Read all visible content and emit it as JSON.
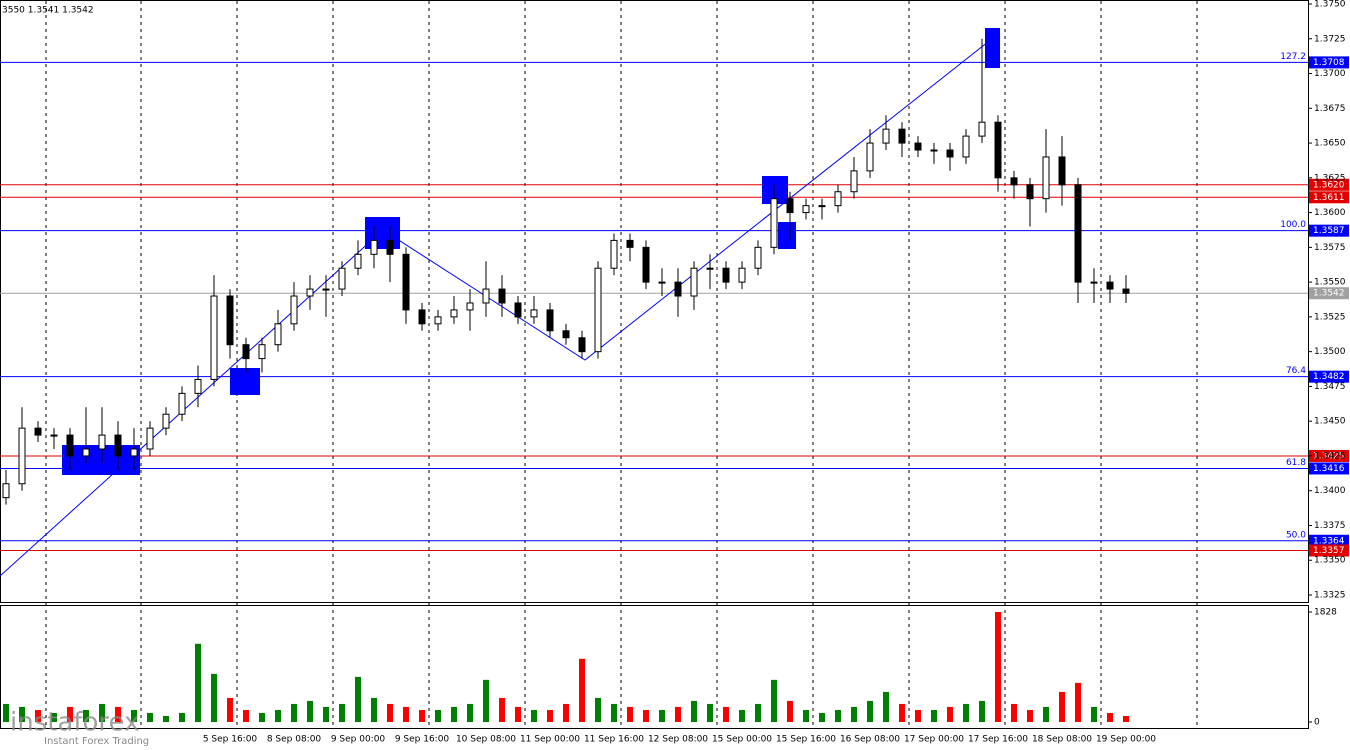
{
  "chart_data": {
    "type": "candlestick",
    "header": "3550 1.3541 1.3542",
    "watermark": "instaforex",
    "watermark_tagline": "Instant Forex Trading",
    "categories": [
      null,
      null,
      null,
      null,
      null,
      null,
      null,
      null,
      null,
      null,
      null,
      null,
      null,
      null,
      "5 Sep 16:00",
      null,
      null,
      null,
      "8 Sep 08:00",
      null,
      null,
      null,
      "9 Sep 00:00",
      null,
      null,
      null,
      "9 Sep 16:00",
      null,
      null,
      null,
      "10 Sep 08:00",
      null,
      null,
      null,
      "11 Sep 00:00",
      null,
      null,
      null,
      "11 Sep 16:00",
      null,
      null,
      null,
      "12 Sep 08:00",
      null,
      null,
      null,
      "15 Sep 00:00",
      null,
      null,
      null,
      "15 Sep 16:00",
      null,
      null,
      null,
      "16 Sep 08:00",
      null,
      null,
      null,
      "17 Sep 00:00",
      null,
      null,
      null,
      "17 Sep 16:00",
      null,
      null,
      null,
      "18 Sep 08:00",
      null,
      null,
      null,
      "19 Sep 00:00"
    ],
    "open": [
      1.3395,
      1.3405,
      1.3445,
      1.344,
      1.344,
      1.3425,
      1.343,
      1.344,
      1.3425,
      1.343,
      1.3445,
      1.3455,
      1.347,
      1.348,
      1.354,
      1.3505,
      1.3495,
      1.3505,
      1.352,
      1.354,
      1.3545,
      1.3545,
      1.356,
      1.357,
      1.358,
      1.357,
      1.353,
      1.352,
      1.3525,
      1.353,
      1.3535,
      1.3545,
      1.3535,
      1.3525,
      1.353,
      1.3515,
      1.351,
      1.35,
      1.356,
      1.358,
      1.3575,
      1.355,
      1.355,
      1.354,
      1.356,
      1.356,
      1.355,
      1.356,
      1.3575,
      1.361,
      1.36,
      1.3605,
      1.3605,
      1.3615,
      1.363,
      1.365,
      1.366,
      1.365,
      1.3645,
      1.3645,
      1.364,
      1.3655,
      1.3665,
      1.3625,
      1.362,
      1.361,
      1.364,
      1.362,
      1.355,
      1.355,
      1.3545
    ],
    "high": [
      1.3415,
      1.346,
      1.345,
      1.3445,
      1.3445,
      1.346,
      1.346,
      1.345,
      1.3445,
      1.345,
      1.346,
      1.3475,
      1.349,
      1.3555,
      1.3545,
      1.351,
      1.351,
      1.353,
      1.355,
      1.3555,
      1.3555,
      1.3565,
      1.358,
      1.359,
      1.359,
      1.3575,
      1.3535,
      1.353,
      1.354,
      1.3545,
      1.3565,
      1.3555,
      1.354,
      1.354,
      1.3535,
      1.352,
      1.3515,
      1.3565,
      1.3585,
      1.3585,
      1.358,
      1.356,
      1.356,
      1.3565,
      1.357,
      1.3565,
      1.3565,
      1.358,
      1.362,
      1.3615,
      1.361,
      1.361,
      1.362,
      1.364,
      1.366,
      1.367,
      1.3665,
      1.3655,
      1.365,
      1.365,
      1.366,
      1.3725,
      1.367,
      1.363,
      1.3625,
      1.366,
      1.3655,
      1.3625,
      1.356,
      1.3555,
      1.3555
    ],
    "low": [
      1.339,
      1.34,
      1.3435,
      1.343,
      1.3415,
      1.342,
      1.342,
      1.3415,
      1.3415,
      1.3425,
      1.344,
      1.345,
      1.346,
      1.3475,
      1.3495,
      1.3485,
      1.3485,
      1.35,
      1.3515,
      1.353,
      1.3525,
      1.354,
      1.3555,
      1.356,
      1.355,
      1.352,
      1.3515,
      1.3515,
      1.352,
      1.3515,
      1.3525,
      1.3525,
      1.352,
      1.352,
      1.351,
      1.3505,
      1.3495,
      1.3495,
      1.3555,
      1.3565,
      1.3545,
      1.354,
      1.3525,
      1.353,
      1.3545,
      1.3545,
      1.3545,
      1.3555,
      1.357,
      1.358,
      1.3595,
      1.3595,
      1.36,
      1.361,
      1.3625,
      1.3645,
      1.364,
      1.364,
      1.3635,
      1.363,
      1.3635,
      1.365,
      1.3615,
      1.361,
      1.359,
      1.36,
      1.3605,
      1.3535,
      1.3535,
      1.3535,
      1.3535
    ],
    "close": [
      1.3405,
      1.3445,
      1.344,
      1.344,
      1.3425,
      1.343,
      1.344,
      1.3425,
      1.343,
      1.3445,
      1.3455,
      1.347,
      1.348,
      1.354,
      1.3505,
      1.3495,
      1.3505,
      1.352,
      1.354,
      1.3545,
      1.3545,
      1.356,
      1.357,
      1.358,
      1.357,
      1.353,
      1.352,
      1.3525,
      1.353,
      1.3535,
      1.3545,
      1.3535,
      1.3525,
      1.353,
      1.3515,
      1.351,
      1.35,
      1.356,
      1.358,
      1.3575,
      1.355,
      1.355,
      1.354,
      1.356,
      1.356,
      1.355,
      1.356,
      1.3575,
      1.361,
      1.36,
      1.3605,
      1.3605,
      1.3615,
      1.363,
      1.365,
      1.366,
      1.365,
      1.3645,
      1.3645,
      1.364,
      1.3655,
      1.3665,
      1.3625,
      1.362,
      1.361,
      1.364,
      1.362,
      1.355,
      1.355,
      1.3545,
      1.3542
    ],
    "ylim": [
      1.3325,
      1.375
    ],
    "yticks": [
      {
        "value": 1.3325,
        "label": "1.3325"
      },
      {
        "value": 1.335,
        "label": "1.3350"
      },
      {
        "value": 1.3375,
        "label": "1.3375"
      },
      {
        "value": 1.34,
        "label": "1.3400"
      },
      {
        "value": 1.3425,
        "label": "1.3425"
      },
      {
        "value": 1.345,
        "label": "1.3450"
      },
      {
        "value": 1.3475,
        "label": "1.3475"
      },
      {
        "value": 1.35,
        "label": "1.3500"
      },
      {
        "value": 1.3525,
        "label": "1.3525"
      },
      {
        "value": 1.355,
        "label": "1.3550"
      },
      {
        "value": 1.3575,
        "label": "1.3575"
      },
      {
        "value": 1.36,
        "label": "1.3600"
      },
      {
        "value": 1.3625,
        "label": "1.3625"
      },
      {
        "value": 1.365,
        "label": "1.3650"
      },
      {
        "value": 1.3675,
        "label": "1.3675"
      },
      {
        "value": 1.37,
        "label": "1.3700"
      },
      {
        "value": 1.3725,
        "label": "1.3725"
      },
      {
        "value": 1.375,
        "label": "1.3750"
      }
    ],
    "levels": [
      {
        "value": 1.3708,
        "label": "1.3708",
        "color": "#0000ff",
        "fib": "127.2"
      },
      {
        "value": 1.362,
        "label": "1.3620",
        "color": "#e00000"
      },
      {
        "value": 1.3611,
        "label": "1.3611",
        "color": "#e00000"
      },
      {
        "value": 1.3587,
        "label": "1.3587",
        "color": "#0000ff",
        "fib": "100.0"
      },
      {
        "value": 1.3542,
        "label": "1.3542",
        "color": "#a0a0a0"
      },
      {
        "value": 1.3482,
        "label": "1.3482",
        "color": "#0000ff",
        "fib": "76.4"
      },
      {
        "value": 1.3425,
        "label": "1.3425",
        "color": "#e00000"
      },
      {
        "value": 1.3416,
        "label": "1.3416",
        "color": "#0000ff",
        "fib": "61.8"
      },
      {
        "value": 1.3364,
        "label": "1.3364",
        "color": "#0000ff",
        "fib": "50.0"
      },
      {
        "value": 1.3357,
        "label": "1.3357",
        "color": "#e00000"
      }
    ],
    "volume": [
      300,
      250,
      200,
      150,
      250,
      200,
      300,
      250,
      200,
      150,
      100,
      150,
      1300,
      800,
      400,
      200,
      150,
      200,
      300,
      350,
      250,
      300,
      750,
      400,
      300,
      250,
      200,
      200,
      250,
      300,
      700,
      400,
      250,
      200,
      200,
      300,
      1050,
      400,
      300,
      250,
      200,
      200,
      250,
      350,
      300,
      250,
      200,
      300,
      700,
      350,
      200,
      150,
      200,
      250,
      350,
      500,
      300,
      200,
      200,
      250,
      300,
      350,
      1828,
      300,
      200,
      250,
      500,
      650,
      250,
      150,
      100
    ],
    "volume_ylim": [
      0,
      1828
    ],
    "volume_yticks": [
      0,
      1828
    ],
    "up_color": "#008000",
    "down_color": "#ff0000"
  }
}
